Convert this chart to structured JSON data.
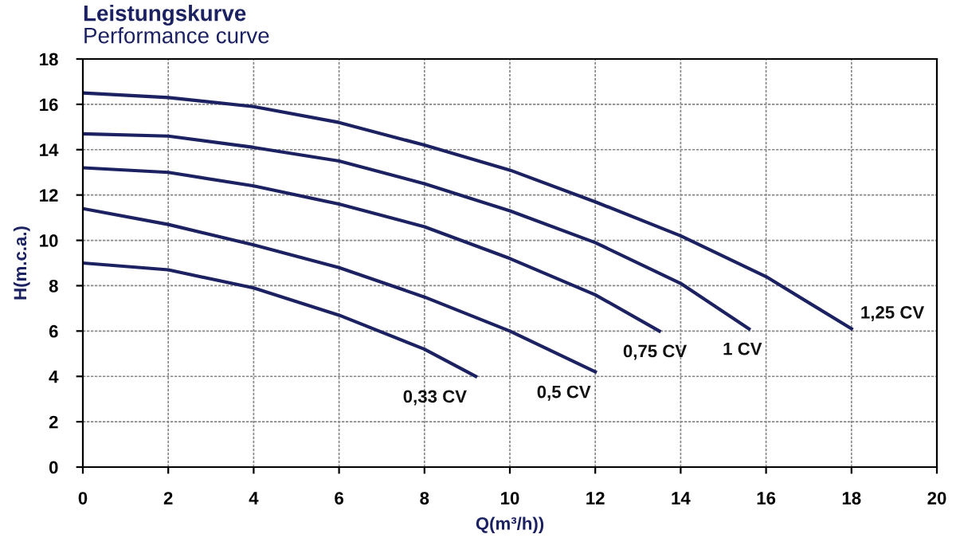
{
  "chart_data": {
    "type": "line",
    "title": "Leistungskurve",
    "subtitle": "Performance curve",
    "xlabel": "Q(m³/h))",
    "ylabel": "H(m.c.a.)",
    "xlim": [
      0,
      20
    ],
    "ylim": [
      0,
      18
    ],
    "xticks": [
      0,
      2,
      4,
      6,
      8,
      10,
      12,
      14,
      16,
      18,
      20
    ],
    "yticks": [
      0,
      2,
      4,
      6,
      8,
      10,
      12,
      14,
      16,
      18
    ],
    "grid": true,
    "marker": "none",
    "line_style": "solid",
    "series": [
      {
        "name": "0,33 CV",
        "color": "#1c2161",
        "x": [
          0,
          2,
          4,
          6,
          8,
          9.2
        ],
        "values": [
          9.0,
          8.7,
          7.9,
          6.7,
          5.2,
          4.0
        ]
      },
      {
        "name": "0,5 CV",
        "color": "#1c2161",
        "x": [
          0,
          2,
          4,
          6,
          8,
          10,
          12
        ],
        "values": [
          11.4,
          10.7,
          9.8,
          8.8,
          7.5,
          6.0,
          4.2
        ]
      },
      {
        "name": "0,75 CV",
        "color": "#1c2161",
        "x": [
          0,
          2,
          4,
          6,
          8,
          10,
          12,
          13.5
        ],
        "values": [
          13.2,
          13.0,
          12.4,
          11.6,
          10.6,
          9.2,
          7.6,
          6.0
        ]
      },
      {
        "name": "1 CV",
        "color": "#1c2161",
        "x": [
          0,
          2,
          4,
          6,
          8,
          10,
          12,
          14,
          15.6
        ],
        "values": [
          14.7,
          14.6,
          14.1,
          13.5,
          12.5,
          11.3,
          9.9,
          8.1,
          6.1
        ]
      },
      {
        "name": "1,25 CV",
        "color": "#1c2161",
        "x": [
          0,
          2,
          4,
          6,
          8,
          10,
          12,
          14,
          16,
          18
        ],
        "values": [
          16.5,
          16.3,
          15.9,
          15.2,
          14.2,
          13.1,
          11.7,
          10.2,
          8.4,
          6.1
        ]
      }
    ]
  }
}
